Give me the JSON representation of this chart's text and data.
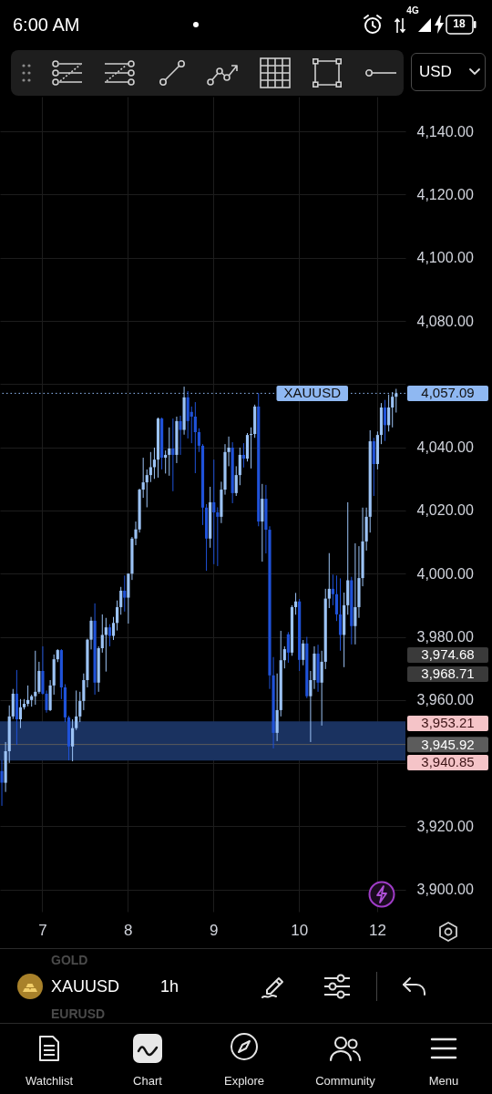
{
  "chart_data": {
    "type": "candlestick",
    "title": "XAUUSD",
    "subtitle": "1h",
    "categories": [
      null,
      null,
      null,
      null,
      null,
      null,
      null,
      null,
      null,
      null,
      null,
      "7",
      null,
      null,
      null,
      null,
      null,
      null,
      null,
      null,
      null,
      null,
      null,
      null,
      null,
      null,
      null,
      null,
      null,
      null,
      null,
      null,
      null,
      null,
      "8",
      null,
      null,
      null,
      null,
      null,
      null,
      null,
      null,
      null,
      null,
      null,
      null,
      null,
      null,
      null,
      null,
      null,
      null,
      null,
      null,
      null,
      null,
      "9",
      null,
      null,
      null,
      null,
      null,
      null,
      null,
      null,
      null,
      null,
      null,
      null,
      null,
      null,
      null,
      null,
      null,
      null,
      null,
      null,
      null,
      null,
      "10",
      null,
      null,
      null,
      null,
      null,
      null,
      null,
      null,
      null,
      null,
      null,
      null,
      null,
      null,
      null,
      null,
      null,
      null,
      null,
      null,
      "12",
      null,
      null,
      null,
      null,
      null
    ],
    "ohlc": [
      [
        3937.5,
        3941.0,
        3926.5,
        3933.8
      ],
      [
        3933.8,
        3946.7,
        3930.9,
        3943.8
      ],
      [
        3943.8,
        3958.3,
        3940.1,
        3954.8
      ],
      [
        3954.8,
        3963.5,
        3954.0,
        3962.0
      ],
      [
        3962.0,
        3969.5,
        3945.8,
        3953.9
      ],
      [
        3953.9,
        3960.3,
        3951.1,
        3957.7
      ],
      [
        3957.7,
        3960.3,
        3957.0,
        3958.8
      ],
      [
        3958.8,
        3964.6,
        3958.0,
        3960.0
      ],
      [
        3960.0,
        3961.7,
        3957.9,
        3961.2
      ],
      [
        3961.2,
        3975.6,
        3958.5,
        3962.6
      ],
      [
        3962.6,
        3972.1,
        3962.0,
        3969.2
      ],
      [
        3969.2,
        3977.0,
        3961.7,
        3962.0
      ],
      [
        3962.0,
        3963.0,
        3956.0,
        3956.8
      ],
      [
        3956.8,
        3966.3,
        3956.5,
        3964.6
      ],
      [
        3964.6,
        3974.4,
        3961.7,
        3972.9
      ],
      [
        3972.9,
        3976.1,
        3972.0,
        3975.8
      ],
      [
        3975.8,
        3976.1,
        3960.3,
        3964.0
      ],
      [
        3964.0,
        3965.0,
        3953.0,
        3954.5
      ],
      [
        3954.5,
        3955.0,
        3940.9,
        3945.3
      ],
      [
        3945.3,
        3953.9,
        3940.6,
        3951.1
      ],
      [
        3951.1,
        3963.0,
        3950.5,
        3954.8
      ],
      [
        3954.8,
        3962.6,
        3953.0,
        3959.7
      ],
      [
        3959.7,
        3968.4,
        3956.8,
        3966.3
      ],
      [
        3966.3,
        3979.4,
        3964.0,
        3979.1
      ],
      [
        3979.1,
        3986.3,
        3976.0,
        3985.1
      ],
      [
        3985.1,
        3990.6,
        3961.7,
        3965.5
      ],
      [
        3965.5,
        3977.0,
        3962.6,
        3976.4
      ],
      [
        3976.4,
        3987.1,
        3975.0,
        3980.6
      ],
      [
        3980.6,
        3986.0,
        3969.0,
        3983.0
      ],
      [
        3983.0,
        3984.0,
        3977.0,
        3980.3
      ],
      [
        3980.3,
        3986.3,
        3979.0,
        3984.4
      ],
      [
        3984.4,
        3991.5,
        3982.0,
        3989.4
      ],
      [
        3989.4,
        3995.8,
        3987.0,
        3994.6
      ],
      [
        3994.6,
        3999.4,
        3988.0,
        3992.4
      ],
      [
        3992.4,
        4000.1,
        3984.2,
        4000.0
      ],
      [
        4000.0,
        4011.6,
        3998.0,
        4011.1
      ],
      [
        4011.1,
        4016.5,
        4009.0,
        4014.0
      ],
      [
        4014.0,
        4026.9,
        4013.0,
        4026.6
      ],
      [
        4026.6,
        4036.7,
        4024.0,
        4028.9
      ],
      [
        4028.9,
        4033.0,
        4021.0,
        4031.2
      ],
      [
        4031.2,
        4038.5,
        4029.0,
        4033.7
      ],
      [
        4033.7,
        4039.9,
        4030.0,
        4036.1
      ],
      [
        4036.1,
        4049.4,
        4030.4,
        4049.1
      ],
      [
        4049.1,
        4049.4,
        4033.0,
        4036.7
      ],
      [
        4036.7,
        4039.0,
        4031.7,
        4037.6
      ],
      [
        4037.6,
        4046.3,
        4031.0,
        4039.6
      ],
      [
        4039.6,
        4049.1,
        4026.1,
        4037.6
      ],
      [
        4037.6,
        4049.7,
        4035.0,
        4048.3
      ],
      [
        4048.3,
        4050.0,
        4037.6,
        4045.5
      ],
      [
        4045.5,
        4059.2,
        4044.0,
        4055.8
      ],
      [
        4055.8,
        4057.8,
        4042.8,
        4048.3
      ],
      [
        4051.2,
        4052.9,
        4041.3,
        4049.7
      ],
      [
        4049.7,
        4054.3,
        4031.8,
        4044.8
      ],
      [
        4044.8,
        4046.0,
        4038.5,
        4040.5
      ],
      [
        4040.5,
        4041.0,
        4015.4,
        4020.9
      ],
      [
        4020.9,
        4022.0,
        4000.9,
        4011.1
      ],
      [
        4011.1,
        4027.5,
        4008.2,
        4022.6
      ],
      [
        4022.6,
        4036.1,
        4003.0,
        4019.4
      ],
      [
        4019.4,
        4021.0,
        4002.4,
        4018.0
      ],
      [
        4018.0,
        4029.1,
        4016.0,
        4026.6
      ],
      [
        4026.6,
        4041.0,
        4025.0,
        4038.5
      ],
      [
        4038.5,
        4043.4,
        4034.0,
        4039.9
      ],
      [
        4039.9,
        4041.6,
        4022.3,
        4025.5
      ],
      [
        4025.5,
        4034.0,
        4024.6,
        4031.2
      ],
      [
        4031.2,
        4039.9,
        4028.0,
        4037.6
      ],
      [
        4037.6,
        4041.3,
        4033.6,
        4036.4
      ],
      [
        4036.4,
        4044.5,
        4035.5,
        4043.9
      ],
      [
        4043.9,
        4046.3,
        4033.3,
        4044.2
      ],
      [
        4044.2,
        4053.5,
        4043.0,
        4052.9
      ],
      [
        4052.9,
        4057.2,
        4015.0,
        4016.5
      ],
      [
        4016.5,
        4028.4,
        4003.8,
        4023.7
      ],
      [
        4023.7,
        4028.1,
        4006.4,
        4013.9
      ],
      [
        4013.9,
        4015.0,
        3963.5,
        3967.8
      ],
      [
        3967.8,
        3973.6,
        3944.7,
        3949.6
      ],
      [
        3949.6,
        3968.4,
        3947.0,
        3956.8
      ],
      [
        3956.8,
        3981.9,
        3954.8,
        3972.6
      ],
      [
        3972.6,
        3977.0,
        3970.0,
        3976.1
      ],
      [
        3980.8,
        3981.5,
        3971.8,
        3975.0
      ],
      [
        3975.0,
        3990.0,
        3974.0,
        3989.4
      ],
      [
        3989.4,
        3993.9,
        3987.0,
        3991.2
      ],
      [
        3991.2,
        3992.0,
        3969.2,
        3972.7
      ],
      [
        3972.7,
        3979.0,
        3971.0,
        3977.9
      ],
      [
        3977.9,
        3980.0,
        3960.6,
        3961.2
      ],
      [
        3961.2,
        3969.2,
        3946.7,
        3966.3
      ],
      [
        3966.3,
        3977.0,
        3963.5,
        3974.7
      ],
      [
        3974.7,
        3977.5,
        3962.6,
        3965.5
      ],
      [
        3965.5,
        3975.6,
        3951.9,
        3972.1
      ],
      [
        3972.1,
        3995.2,
        3969.8,
        3992.1
      ],
      [
        3992.1,
        4006.5,
        3989.1,
        3995.2
      ],
      [
        3995.2,
        3999.7,
        3990.0,
        3993.5
      ],
      [
        3993.5,
        3999.4,
        3985.0,
        3987.1
      ],
      [
        3987.1,
        3998.5,
        3975.6,
        3980.6
      ],
      [
        3980.6,
        3994.0,
        3970.4,
        3990.0
      ],
      [
        3990.0,
        4022.6,
        3987.0,
        3997.9
      ],
      [
        3997.9,
        3999.0,
        3977.6,
        3983.4
      ],
      [
        3983.4,
        4009.6,
        3977.6,
        3989.4
      ],
      [
        3989.4,
        4008.7,
        3986.0,
        3998.6
      ],
      [
        3998.6,
        4020.9,
        3996.0,
        4010.2
      ],
      [
        4010.2,
        4020.9,
        4007.3,
        4018.0
      ],
      [
        4018.0,
        4045.4,
        4013.0,
        4041.9
      ],
      [
        4041.9,
        4043.0,
        4024.6,
        4034.7
      ],
      [
        4034.7,
        4045.0,
        4033.0,
        4043.9
      ],
      [
        4043.9,
        4054.0,
        4041.0,
        4052.6
      ],
      [
        4052.6,
        4055.0,
        4042.0,
        4047.0
      ],
      [
        4047.0,
        4056.7,
        4045.0,
        4052.6
      ],
      [
        4052.6,
        4057.5,
        4046.3,
        4056.0
      ],
      [
        4056.0,
        4058.5,
        4051.0,
        4057.09
      ]
    ],
    "colors": [
      "#1f52d9",
      "#9cc3f5",
      "#9cc3f5",
      "#9cc3f5",
      "#1f52d9",
      "#9cc3f5",
      "#9cc3f5",
      "#9cc3f5",
      "#9cc3f5",
      "#9cc3f5",
      "#9cc3f5",
      "#1f52d9",
      "#1f52d9",
      "#9cc3f5",
      "#9cc3f5",
      "#9cc3f5",
      "#1f52d9",
      "#1f52d9",
      "#1f52d9",
      "#9cc3f5",
      "#9cc3f5",
      "#9cc3f5",
      "#9cc3f5",
      "#9cc3f5",
      "#9cc3f5",
      "#1f52d9",
      "#9cc3f5",
      "#9cc3f5",
      "#9cc3f5",
      "#1f52d9",
      "#9cc3f5",
      "#9cc3f5",
      "#9cc3f5",
      "#1f52d9",
      "#9cc3f5",
      "#9cc3f5",
      "#9cc3f5",
      "#9cc3f5",
      "#9cc3f5",
      "#9cc3f5",
      "#9cc3f5",
      "#9cc3f5",
      "#9cc3f5",
      "#1f52d9",
      "#9cc3f5",
      "#9cc3f5",
      "#1f52d9",
      "#9cc3f5",
      "#1f52d9",
      "#9cc3f5",
      "#1f52d9",
      "#1f52d9",
      "#1f52d9",
      "#1f52d9",
      "#1f52d9",
      "#1f52d9",
      "#9cc3f5",
      "#1f52d9",
      "#1f52d9",
      "#9cc3f5",
      "#9cc3f5",
      "#9cc3f5",
      "#1f52d9",
      "#9cc3f5",
      "#9cc3f5",
      "#1f52d9",
      "#9cc3f5",
      "#9cc3f5",
      "#9cc3f5",
      "#1f52d9",
      "#9cc3f5",
      "#1f52d9",
      "#1f52d9",
      "#1f52d9",
      "#9cc3f5",
      "#9cc3f5",
      "#9cc3f5",
      "#1f52d9",
      "#9cc3f5",
      "#9cc3f5",
      "#1f52d9",
      "#9cc3f5",
      "#1f52d9",
      "#9cc3f5",
      "#9cc3f5",
      "#1f52d9",
      "#9cc3f5",
      "#9cc3f5",
      "#9cc3f5",
      "#1f52d9",
      "#1f52d9",
      "#1f52d9",
      "#9cc3f5",
      "#9cc3f5",
      "#1f52d9",
      "#9cc3f5",
      "#9cc3f5",
      "#9cc3f5",
      "#9cc3f5",
      "#9cc3f5",
      "#1f52d9",
      "#9cc3f5",
      "#9cc3f5",
      "#1f52d9",
      "#9cc3f5",
      "#9cc3f5",
      "#9cc3f5"
    ],
    "ylim": [
      3893,
      4151
    ],
    "yticks": [
      {
        "value": 3900,
        "label": "3,900.00"
      },
      {
        "value": 3920,
        "label": "3,920.00"
      },
      {
        "value": 3940,
        "label": null
      },
      {
        "value": 3960,
        "label": "3,960.00"
      },
      {
        "value": 3980,
        "label": "3,980.00"
      },
      {
        "value": 4000,
        "label": "4,000.00"
      },
      {
        "value": 4020,
        "label": "4,020.00"
      },
      {
        "value": 4040,
        "label": "4,040.00"
      },
      {
        "value": 4060,
        "label": null
      },
      {
        "value": 4080,
        "label": "4,080.00"
      },
      {
        "value": 4100,
        "label": "4,100.00"
      },
      {
        "value": 4120,
        "label": "4,120.00"
      },
      {
        "value": 4140,
        "label": "4,140.00"
      }
    ],
    "grid": true,
    "ref_lines": [
      {
        "axis": "y",
        "value": 4057.09,
        "label": "4,057.09",
        "color": "#8fb8f2",
        "line_style": "dotted"
      },
      {
        "axis": "y",
        "value": 3945.92,
        "label": "3,945.92",
        "color": "#5c5c5c",
        "line_style": "solid"
      }
    ],
    "bands": [
      {
        "axis": "y",
        "from": 3940.85,
        "to": 3953.21,
        "color": "#1a3260"
      }
    ],
    "annotations": [
      "6:00 AM",
      "4G",
      "18",
      "USD",
      "GOLD",
      "EURUSD",
      "Watchlist",
      "Chart",
      "Explore",
      "Community",
      "Menu",
      "3,974.68",
      "3,968.71",
      "3,953.21",
      "3,940.85",
      {
        "text": "XAUUSD",
        "y": 4057.09
      }
    ]
  }
}
